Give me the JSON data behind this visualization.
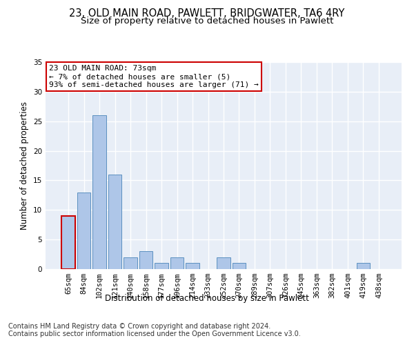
{
  "title_line1": "23, OLD MAIN ROAD, PAWLETT, BRIDGWATER, TA6 4RY",
  "title_line2": "Size of property relative to detached houses in Pawlett",
  "xlabel": "Distribution of detached houses by size in Pawlett",
  "ylabel": "Number of detached properties",
  "categories": [
    "65sqm",
    "84sqm",
    "102sqm",
    "121sqm",
    "140sqm",
    "158sqm",
    "177sqm",
    "196sqm",
    "214sqm",
    "233sqm",
    "252sqm",
    "270sqm",
    "289sqm",
    "307sqm",
    "326sqm",
    "345sqm",
    "363sqm",
    "382sqm",
    "401sqm",
    "419sqm",
    "438sqm"
  ],
  "values": [
    9,
    13,
    26,
    16,
    2,
    3,
    1,
    2,
    1,
    0,
    2,
    1,
    0,
    0,
    0,
    0,
    0,
    0,
    0,
    1,
    0
  ],
  "bar_color": "#aec6e8",
  "bar_edge_color": "#5b90c0",
  "highlight_bar_index": 0,
  "highlight_bar_edge_color": "#cc0000",
  "annotation_box_text": "23 OLD MAIN ROAD: 73sqm\n← 7% of detached houses are smaller (5)\n93% of semi-detached houses are larger (71) →",
  "annotation_box_color": "#ffffff",
  "annotation_box_edge_color": "#cc0000",
  "footnote": "Contains HM Land Registry data © Crown copyright and database right 2024.\nContains public sector information licensed under the Open Government Licence v3.0.",
  "ylim": [
    0,
    35
  ],
  "yticks": [
    0,
    5,
    10,
    15,
    20,
    25,
    30,
    35
  ],
  "background_color": "#e8eef7",
  "grid_color": "#ffffff",
  "title_fontsize": 10.5,
  "subtitle_fontsize": 9.5,
  "axis_label_fontsize": 8.5,
  "tick_fontsize": 7.5,
  "annotation_fontsize": 8,
  "footnote_fontsize": 7
}
